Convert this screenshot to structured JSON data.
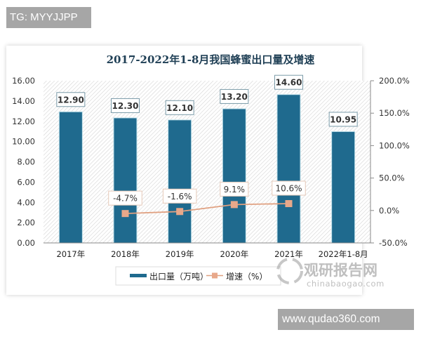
{
  "watermarks": {
    "top": "TG: MYYJJPP",
    "bottom": "www.qudao360.com",
    "logo_cn": "观研报告网",
    "logo_url": "chinabaogao.com"
  },
  "colors": {
    "bar": "#1f6a8e",
    "line": "#e0a080",
    "marker": "#e8a88a",
    "axis_text": "#333333",
    "title": "#1f3f55"
  },
  "chart_data": {
    "type": "bar+line",
    "title": "2017-2022年1-8月我国蜂蜜出口量及增速",
    "categories": [
      "2017年",
      "2018年",
      "2019年",
      "2020年",
      "2021年",
      "2022年1-8月"
    ],
    "series": [
      {
        "name": "出口量（万吨）",
        "type": "bar",
        "axis": "left",
        "values": [
          12.9,
          12.3,
          12.1,
          13.2,
          14.6,
          10.95
        ],
        "labels": [
          "12.90",
          "12.30",
          "12.10",
          "13.20",
          "14.60",
          "10.95"
        ]
      },
      {
        "name": "增速（%）",
        "type": "line",
        "axis": "right",
        "values": [
          null,
          -4.7,
          -1.6,
          9.1,
          10.6,
          null
        ],
        "labels": [
          "",
          "-4.7%",
          "-1.6%",
          "9.1%",
          "10.6%",
          ""
        ]
      }
    ],
    "left_axis": {
      "ylim": [
        0,
        16
      ],
      "ticks": [
        "0.00",
        "2.00",
        "4.00",
        "6.00",
        "8.00",
        "10.00",
        "12.00",
        "14.00",
        "16.00"
      ]
    },
    "right_axis": {
      "ylim": [
        -50,
        200
      ],
      "ticks": [
        "-50.0%",
        "0.0%",
        "50.0%",
        "100.0%",
        "150.0%",
        "200.0%"
      ]
    },
    "legend": {
      "position": "bottom",
      "entries": [
        "出口量（万吨）",
        "增速（%）"
      ]
    },
    "grid": false
  }
}
